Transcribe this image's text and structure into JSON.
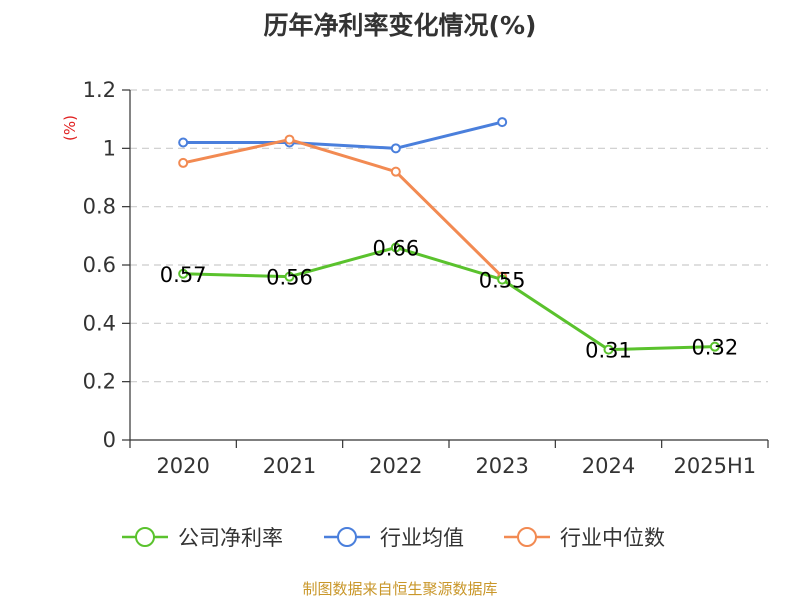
{
  "title": "历年净利率变化情况(%)",
  "unit_label": "(%)",
  "source": "制图数据来自恒生聚源数据库",
  "chart_data": {
    "type": "line",
    "categories": [
      "2020",
      "2021",
      "2022",
      "2023",
      "2024",
      "2025H1"
    ],
    "ylim": [
      0,
      1.2
    ],
    "yticks": [
      "0",
      "0.2",
      "0.4",
      "0.6",
      "0.8",
      "1",
      "1.2"
    ],
    "grid": true,
    "legend_position": "bottom",
    "series": [
      {
        "name": "公司净利率",
        "color": "#5ac22d",
        "values": [
          0.57,
          0.56,
          0.66,
          0.55,
          0.31,
          0.32
        ],
        "labels": [
          "0.57",
          "0.56",
          "0.66",
          "0.55",
          "0.31",
          "0.32"
        ]
      },
      {
        "name": "行业均值",
        "color": "#4a7fdc",
        "values": [
          1.02,
          1.02,
          1.0,
          1.09,
          null,
          null
        ],
        "labels": []
      },
      {
        "name": "行业中位数",
        "color": "#f28a52",
        "values": [
          0.95,
          1.03,
          0.92,
          0.56,
          null,
          null
        ],
        "labels": []
      }
    ]
  }
}
